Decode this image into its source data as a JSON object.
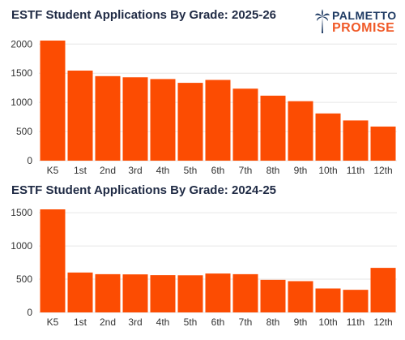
{
  "logo": {
    "line1": "PALMETTO",
    "line2": "PROMISE",
    "icon": "palmetto-tree-icon"
  },
  "colors": {
    "bar": "#fc4c02",
    "title": "#1f2a44"
  },
  "chart_data": [
    {
      "type": "bar",
      "title": "ESTF Student Applications By Grade: 2025-26",
      "xlabel": "",
      "ylabel": "",
      "categories": [
        "K5",
        "1st",
        "2nd",
        "3rd",
        "4th",
        "5th",
        "6th",
        "7th",
        "8th",
        "9th",
        "10th",
        "11th",
        "12th"
      ],
      "values": [
        2060,
        1545,
        1450,
        1430,
        1400,
        1335,
        1385,
        1235,
        1115,
        1020,
        810,
        690,
        585
      ],
      "ylim": [
        0,
        2060
      ],
      "yticks": [
        0,
        500,
        1000,
        1500,
        2000
      ],
      "grid": true
    },
    {
      "type": "bar",
      "title": "ESTF Student Applications By Grade: 2024-25",
      "xlabel": "",
      "ylabel": "",
      "categories": [
        "K5",
        "1st",
        "2nd",
        "3rd",
        "4th",
        "5th",
        "6th",
        "7th",
        "8th",
        "9th",
        "10th",
        "11th",
        "12th"
      ],
      "values": [
        1550,
        600,
        575,
        572,
        560,
        558,
        585,
        575,
        490,
        470,
        360,
        340,
        670
      ],
      "ylim": [
        0,
        1550
      ],
      "yticks": [
        0,
        500,
        1000,
        1500
      ],
      "grid": true
    }
  ]
}
